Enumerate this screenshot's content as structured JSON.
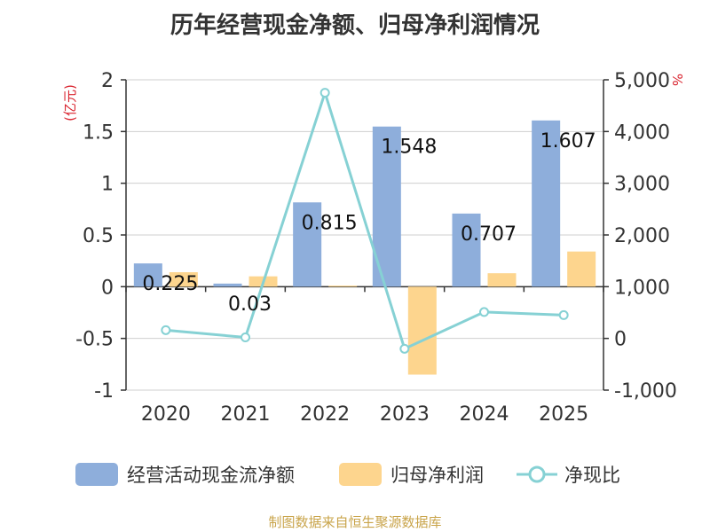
{
  "chart_data": {
    "type": "bar+line",
    "title": "历年经营现金净额、归母净利润情况",
    "categories": [
      "2020",
      "2021",
      "2022",
      "2023",
      "2024",
      "2025"
    ],
    "left_axis": {
      "unit": "(亿元)",
      "ylim": [
        -1,
        2
      ],
      "ticks": [
        "2",
        "1.5",
        "1",
        "0.5",
        "0",
        "-0.5",
        "-1"
      ],
      "tick_values": [
        2,
        1.5,
        1,
        0.5,
        0,
        -0.5,
        -1
      ]
    },
    "right_axis": {
      "unit": "%",
      "ylim": [
        -1000,
        5000
      ],
      "ticks": [
        "5,000",
        "4,000",
        "3,000",
        "2,000",
        "1,000",
        "0",
        "-1,000"
      ],
      "tick_values": [
        5000,
        4000,
        3000,
        2000,
        1000,
        0,
        -1000
      ]
    },
    "series": [
      {
        "name": "经营活动现金流净额",
        "type": "bar",
        "axis": "left",
        "color": "#8eaedb",
        "values": [
          0.225,
          0.03,
          0.815,
          1.548,
          0.707,
          1.607
        ],
        "labels": [
          "0.225",
          "0.03",
          "0.815",
          "1.548",
          "0.707",
          "1.607"
        ]
      },
      {
        "name": "归母净利润",
        "type": "bar",
        "axis": "left",
        "color": "#fdd58e",
        "values": [
          0.14,
          0.1,
          0.01,
          -0.85,
          0.13,
          0.34
        ]
      },
      {
        "name": "净现比",
        "type": "line",
        "axis": "right",
        "color": "#86d1d4",
        "values": 160,
        "values_list": [
          160,
          20,
          4750,
          -200,
          510,
          450
        ]
      }
    ]
  },
  "source_text": "制图数据来自恒生聚源数据库"
}
